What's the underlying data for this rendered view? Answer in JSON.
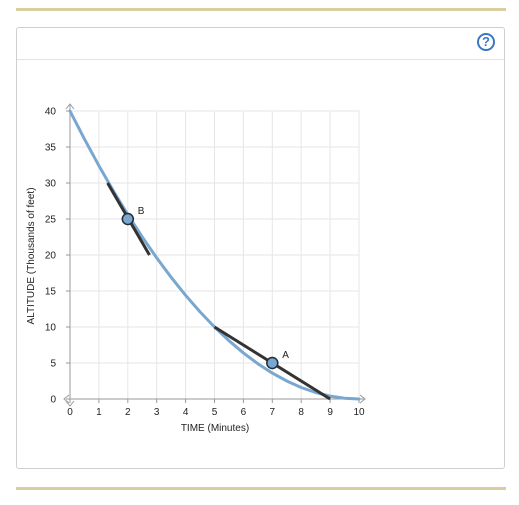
{
  "help_label": "?",
  "chart_data": {
    "type": "line",
    "xlabel": "TIME (Minutes)",
    "ylabel": "ALTITUDE (Thousands of feet)",
    "xlim": [
      0,
      10
    ],
    "ylim": [
      0,
      40
    ],
    "xticks": [
      0,
      1,
      2,
      3,
      4,
      5,
      6,
      7,
      8,
      9,
      10
    ],
    "yticks": [
      0,
      5,
      10,
      15,
      20,
      25,
      30,
      35,
      40
    ],
    "grid": true,
    "curve": {
      "color": "#7aa7d0",
      "x": [
        0,
        0.5,
        1,
        1.5,
        2,
        2.5,
        3,
        3.5,
        4,
        4.5,
        5,
        5.5,
        6,
        6.5,
        7,
        7.5,
        8,
        8.5,
        9,
        9.5,
        10
      ],
      "y": [
        40,
        36.1,
        32.4,
        28.9,
        25.6,
        22.5,
        19.6,
        16.9,
        14.4,
        12.1,
        10,
        8.1,
        6.4,
        4.9,
        3.6,
        2.5,
        1.6,
        0.9,
        0.4,
        0.1,
        0
      ]
    },
    "tangents": [
      {
        "color": "#333333",
        "x": [
          5,
          9
        ],
        "y": [
          10,
          0
        ]
      },
      {
        "color": "#333333",
        "x": [
          1.3,
          2.75
        ],
        "y": [
          30,
          20
        ]
      }
    ],
    "points": [
      {
        "label": "B",
        "x": 2,
        "y": 25
      },
      {
        "label": "A",
        "x": 7,
        "y": 5
      }
    ],
    "point_color": "#7aa7d0"
  }
}
